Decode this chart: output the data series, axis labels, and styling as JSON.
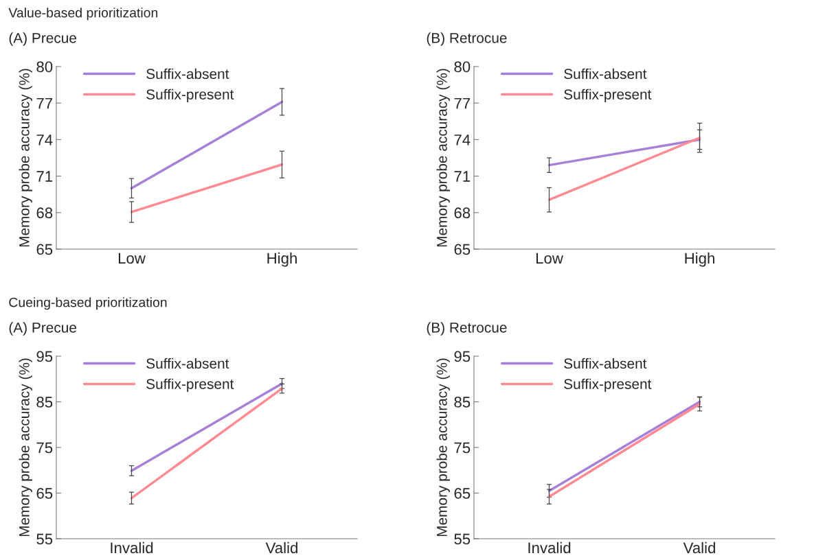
{
  "chart_data": [
    {
      "type": "line",
      "title": "(A) Precue",
      "annotations": [
        "Value-based prioritization"
      ],
      "ylabel": "Memory probe accuracy (%)",
      "categories": [
        "Low",
        "High"
      ],
      "ylim": [
        65,
        80
      ],
      "yticks": [
        65,
        68,
        71,
        74,
        77,
        80
      ],
      "legend": "top left",
      "grid": false,
      "series": [
        {
          "name": "Suffix-absent",
          "color": "#a57fd8",
          "values": [
            70.0,
            77.1
          ],
          "errors": [
            0.8,
            1.1
          ]
        },
        {
          "name": "Suffix-present",
          "color": "#ff8a93",
          "values": [
            68.05,
            71.95
          ],
          "errors": [
            0.85,
            1.1
          ]
        }
      ]
    },
    {
      "type": "line",
      "title": "(B) Retrocue",
      "ylabel": "Memory probe accuracy (%)",
      "categories": [
        "Low",
        "High"
      ],
      "ylim": [
        65,
        80
      ],
      "yticks": [
        65,
        68,
        71,
        74,
        77,
        80
      ],
      "legend": "top left",
      "grid": false,
      "series": [
        {
          "name": "Suffix-absent",
          "color": "#a57fd8",
          "values": [
            71.9,
            74.0
          ],
          "errors": [
            0.6,
            0.8
          ]
        },
        {
          "name": "Suffix-present",
          "color": "#ff8a93",
          "values": [
            69.05,
            74.15
          ],
          "errors": [
            1.0,
            1.2
          ]
        }
      ]
    },
    {
      "type": "line",
      "title": "(A) Precue",
      "annotations": [
        "Cueing-based prioritization"
      ],
      "ylabel": "Memory probe accuracy (%)",
      "categories": [
        "Invalid",
        "Valid"
      ],
      "ylim": [
        55,
        95
      ],
      "yticks": [
        55,
        65,
        75,
        85,
        95
      ],
      "legend": "top left",
      "grid": false,
      "series": [
        {
          "name": "Suffix-absent",
          "color": "#a57fd8",
          "values": [
            69.9,
            89.0
          ],
          "errors": [
            1.1,
            1.1
          ]
        },
        {
          "name": "Suffix-present",
          "color": "#ff8a93",
          "values": [
            63.9,
            87.9
          ],
          "errors": [
            1.3,
            1.0
          ]
        }
      ]
    },
    {
      "type": "line",
      "title": "(B) Retrocue",
      "ylabel": "Memory probe accuracy (%)",
      "categories": [
        "Invalid",
        "Valid"
      ],
      "ylim": [
        55,
        95
      ],
      "yticks": [
        55,
        65,
        75,
        85,
        95
      ],
      "legend": "top left",
      "grid": false,
      "series": [
        {
          "name": "Suffix-absent",
          "color": "#a57fd8",
          "values": [
            65.5,
            85.0
          ],
          "errors": [
            1.4,
            1.1
          ]
        },
        {
          "name": "Suffix-present",
          "color": "#ff8a93",
          "values": [
            64.2,
            84.5
          ],
          "errors": [
            1.6,
            1.5
          ]
        }
      ]
    }
  ]
}
